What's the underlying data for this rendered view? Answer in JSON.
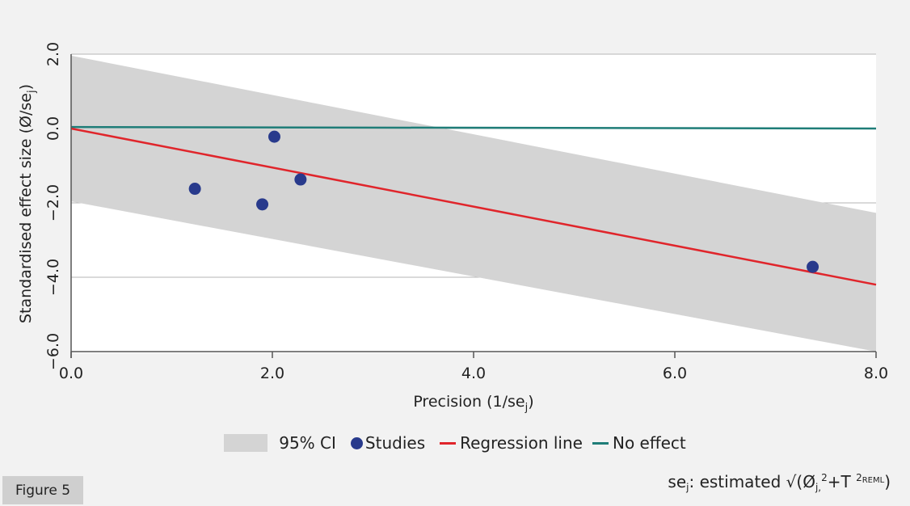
{
  "chart_data": {
    "type": "scatter",
    "xlabel": "Precision (1/se",
    "xlabel_sub": "j",
    "xlabel_close": ")",
    "ylabel": "Standardised effect size (Ø/se",
    "ylabel_sub": "j",
    "ylabel_close": ")",
    "xlim": [
      0,
      8
    ],
    "ylim": [
      -6,
      2
    ],
    "x_ticks": [
      0,
      2,
      4,
      6,
      8
    ],
    "x_tick_labels": [
      "0.0",
      "2.0",
      "4.0",
      "6.0",
      "8.0"
    ],
    "y_ticks": [
      2,
      0,
      -2,
      -4,
      -6
    ],
    "y_tick_labels": [
      "2.0",
      "0.0",
      "−2.0",
      "−4.0",
      "−6.0"
    ],
    "series": [
      {
        "name": "Studies",
        "type": "scatter",
        "points": [
          {
            "x": 1.23,
            "y": -1.62
          },
          {
            "x": 1.9,
            "y": -2.04
          },
          {
            "x": 2.02,
            "y": -0.22
          },
          {
            "x": 2.28,
            "y": -1.37
          },
          {
            "x": 7.37,
            "y": -3.72
          }
        ]
      },
      {
        "name": "Regression line",
        "type": "line",
        "x": [
          0,
          8
        ],
        "y": [
          0,
          -4.2
        ]
      },
      {
        "name": "No effect",
        "type": "line",
        "x": [
          0,
          8
        ],
        "y": [
          0.04,
          0
        ]
      },
      {
        "name": "95% CI",
        "type": "band",
        "x": [
          0,
          8
        ],
        "upper": [
          1.96,
          -2.27
        ],
        "lower": [
          -1.96,
          -6.0
        ]
      }
    ],
    "legend": [
      {
        "label": "95% CI",
        "key": "ci"
      },
      {
        "label": "Studies",
        "key": "studies"
      },
      {
        "label": "Regression line",
        "key": "regression"
      },
      {
        "label": "No effect",
        "key": "noeffect"
      }
    ]
  },
  "colors": {
    "ci_band": "#d4d4d4",
    "studies": "#283a8c",
    "regression": "#e0252b",
    "no_effect": "#1f7d78",
    "grid": "#b5b5b5",
    "axis": "#555555"
  },
  "figure_label": "Figure 5",
  "footnote": {
    "text1": "se",
    "sub1": "j",
    "text2": ": estimated √(Ø",
    "sub2": "j,",
    "sup1": "2",
    "text3": "+T ",
    "sup2": "2",
    "tiny": "REML",
    "text4": ")"
  }
}
